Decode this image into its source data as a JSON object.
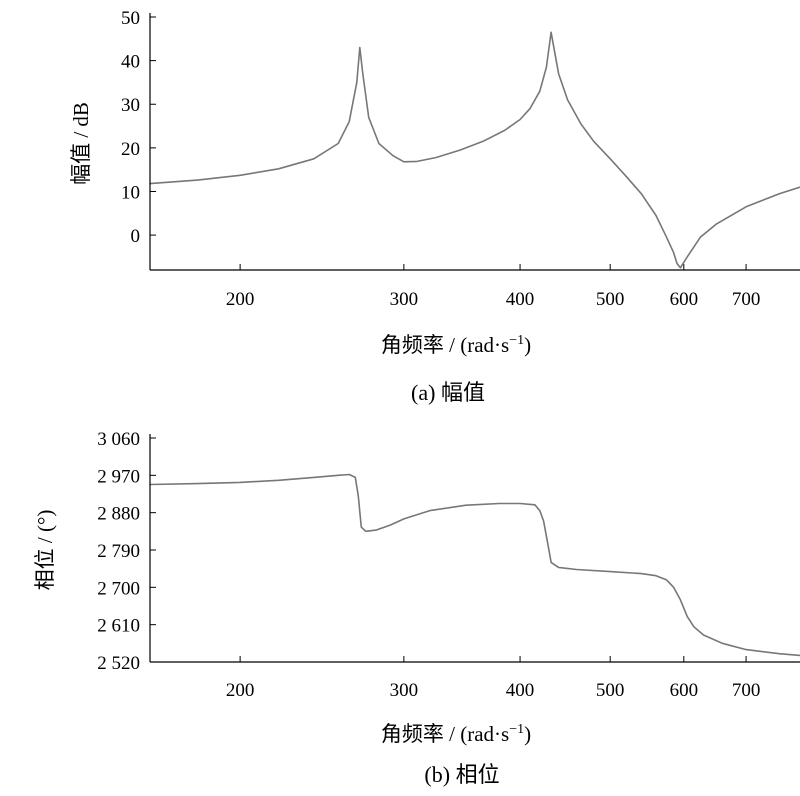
{
  "chart_data": [
    {
      "type": "line",
      "caption": "(a) 幅值",
      "xlabel": "角频率 / (rad·s",
      "xlabel_sup": "−1",
      "xlabel_end": ")",
      "ylabel": "幅值 / dB",
      "xscale": "log",
      "xlim": [
        160,
        800
      ],
      "ylim": [
        -8,
        50
      ],
      "xticks": [
        200,
        300,
        400,
        500,
        600,
        700
      ],
      "xtick_labels": [
        "200",
        "300",
        "400",
        "500",
        "600",
        "700"
      ],
      "yticks": [
        0,
        10,
        20,
        30,
        40,
        50
      ],
      "ytick_labels": [
        "0",
        "10",
        "20",
        "30",
        "40",
        "50"
      ],
      "line_color": "#777777",
      "series": [
        {
          "x": [
            160,
            180,
            200,
            220,
            240,
            255,
            262,
            267,
            269,
            271,
            275,
            282,
            292,
            300,
            310,
            325,
            345,
            365,
            385,
            400,
            410,
            420,
            427,
            432,
            440,
            450,
            465,
            480,
            500,
            520,
            540,
            560,
            575,
            585,
            590,
            595,
            605,
            625,
            650,
            700,
            760,
            800
          ],
          "y": [
            11.8,
            12.6,
            13.7,
            15.2,
            17.5,
            21.0,
            26.0,
            35.0,
            43.0,
            37.0,
            27.0,
            21.0,
            18.2,
            16.8,
            16.9,
            17.8,
            19.5,
            21.5,
            24.0,
            26.5,
            29.0,
            33.0,
            38.5,
            46.5,
            37.0,
            31.0,
            25.5,
            21.5,
            17.5,
            13.5,
            9.5,
            4.5,
            -0.5,
            -4.0,
            -6.5,
            -7.5,
            -5.0,
            -0.5,
            2.5,
            6.5,
            9.5,
            11.0
          ]
        }
      ]
    },
    {
      "type": "line",
      "caption": "(b) 相位",
      "xlabel": "角频率 / (rad·s",
      "xlabel_sup": "−1",
      "xlabel_end": ")",
      "ylabel": "相位 / (°)",
      "xscale": "log",
      "xlim": [
        160,
        800
      ],
      "ylim": [
        2520,
        3060
      ],
      "xticks": [
        200,
        300,
        400,
        500,
        600,
        700
      ],
      "xtick_labels": [
        "200",
        "300",
        "400",
        "500",
        "600",
        "700"
      ],
      "yticks": [
        2520,
        2610,
        2700,
        2790,
        2880,
        2970,
        3060
      ],
      "ytick_labels": [
        "2 520",
        "2 610",
        "2 700",
        "2 790",
        "2 880",
        "2 970",
        "3 060"
      ],
      "line_color": "#777777",
      "series": [
        {
          "x": [
            160,
            180,
            200,
            220,
            240,
            255,
            262,
            266,
            268,
            270,
            273,
            280,
            290,
            300,
            320,
            350,
            380,
            400,
            415,
            420,
            424,
            428,
            430,
            432,
            440,
            460,
            500,
            540,
            560,
            575,
            585,
            595,
            605,
            615,
            630,
            660,
            700,
            760,
            800
          ],
          "y": [
            2948,
            2950,
            2953,
            2958,
            2965,
            2970,
            2972,
            2965,
            2920,
            2845,
            2835,
            2838,
            2850,
            2865,
            2885,
            2898,
            2902,
            2902,
            2899,
            2885,
            2860,
            2810,
            2785,
            2760,
            2748,
            2743,
            2738,
            2733,
            2728,
            2718,
            2700,
            2670,
            2630,
            2605,
            2585,
            2565,
            2550,
            2540,
            2536
          ]
        }
      ]
    }
  ]
}
